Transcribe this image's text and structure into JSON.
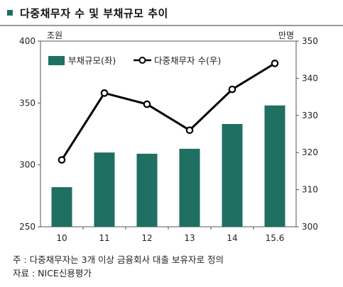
{
  "title": "다중채무자 수 및 부채규모 추이",
  "colors": {
    "bar": "#1f6f62",
    "line": "#000000",
    "title_square": "#1f6f62"
  },
  "chart_data": {
    "type": "bar",
    "categories": [
      "10",
      "11",
      "12",
      "13",
      "14",
      "15.6"
    ],
    "series": [
      {
        "name": "부채규모(좌)",
        "type": "bar",
        "axis": "left",
        "values": [
          282,
          310,
          309,
          313,
          333,
          348
        ]
      },
      {
        "name": "다중채무자 수(우)",
        "type": "line",
        "axis": "right",
        "values": [
          318,
          336,
          333,
          326,
          337,
          344
        ]
      }
    ],
    "left_axis": {
      "unit": "조원",
      "ylim": [
        250,
        400
      ],
      "ticks": [
        250,
        300,
        350,
        400
      ]
    },
    "right_axis": {
      "unit": "만명",
      "ylim": [
        300,
        350
      ],
      "ticks": [
        300,
        310,
        320,
        330,
        340,
        350
      ]
    },
    "legend": "top-left",
    "grid": false
  },
  "notes": [
    "주 : 다중채무자는 3개 이상 금융회사 대출 보유자로 정의",
    "자료 : NICE신용평가"
  ]
}
